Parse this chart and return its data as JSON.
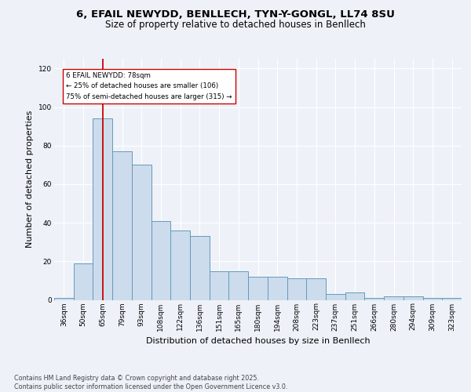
{
  "title1": "6, EFAIL NEWYDD, BENLLECH, TYN-Y-GONGL, LL74 8SU",
  "title2": "Size of property relative to detached houses in Benllech",
  "xlabel": "Distribution of detached houses by size in Benllech",
  "ylabel": "Number of detached properties",
  "categories": [
    "36sqm",
    "50sqm",
    "65sqm",
    "79sqm",
    "93sqm",
    "108sqm",
    "122sqm",
    "136sqm",
    "151sqm",
    "165sqm",
    "180sqm",
    "194sqm",
    "208sqm",
    "223sqm",
    "237sqm",
    "251sqm",
    "266sqm",
    "280sqm",
    "294sqm",
    "309sqm",
    "323sqm"
  ],
  "values": [
    1,
    19,
    94,
    77,
    70,
    41,
    36,
    33,
    15,
    15,
    12,
    12,
    11,
    11,
    3,
    4,
    1,
    2,
    2,
    1,
    1
  ],
  "bar_color": "#ccdcec",
  "bar_edge_color": "#6699bb",
  "property_bin_index": 2,
  "annotation_text": "6 EFAIL NEWYDD: 78sqm\n← 25% of detached houses are smaller (106)\n75% of semi-detached houses are larger (315) →",
  "vline_color": "#cc0000",
  "annotation_box_color": "#ffffff",
  "annotation_box_edge": "#cc0000",
  "footer_text": "Contains HM Land Registry data © Crown copyright and database right 2025.\nContains public sector information licensed under the Open Government Licence v3.0.",
  "ylim": [
    0,
    125
  ],
  "yticks": [
    0,
    20,
    40,
    60,
    80,
    100,
    120
  ],
  "background_color": "#eef2f8",
  "grid_color": "#ffffff",
  "title_fontsize": 9.5,
  "subtitle_fontsize": 8.5,
  "tick_fontsize": 6.5,
  "label_fontsize": 8,
  "footer_fontsize": 5.8
}
